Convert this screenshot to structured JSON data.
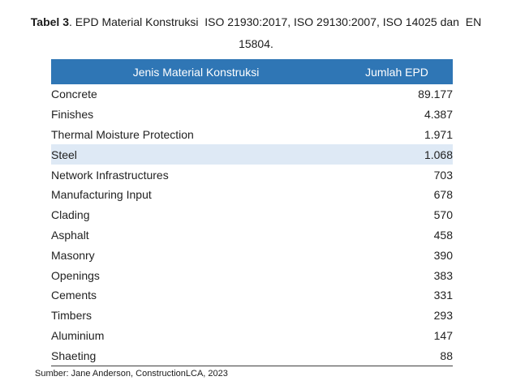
{
  "caption": {
    "label": "Tabel 3",
    "line1_rest": ". EPD Material Konstruksi  ISO 21930:2017, ISO 29130:2007, ISO 14025 dan  EN",
    "line2": "15804."
  },
  "table": {
    "headers": [
      "Jenis Material Konstruksi",
      "Jumlah EPD"
    ],
    "rows": [
      {
        "material": "Concrete",
        "epd": "89.177",
        "highlight": false
      },
      {
        "material": "Finishes",
        "epd": "4.387",
        "highlight": false
      },
      {
        "material": "Thermal Moisture Protection",
        "epd": "1.971",
        "highlight": false
      },
      {
        "material": "Steel",
        "epd": "1.068",
        "highlight": true
      },
      {
        "material": "Network Infrastructures",
        "epd": "703",
        "highlight": false
      },
      {
        "material": "Manufacturing Input",
        "epd": "678",
        "highlight": false
      },
      {
        "material": "Clading",
        "epd": "570",
        "highlight": false
      },
      {
        "material": "Asphalt",
        "epd": "458",
        "highlight": false
      },
      {
        "material": "Masonry",
        "epd": "390",
        "highlight": false
      },
      {
        "material": "Openings",
        "epd": "383",
        "highlight": false
      },
      {
        "material": "Cements",
        "epd": "331",
        "highlight": false
      },
      {
        "material": "Timbers",
        "epd": "293",
        "highlight": false
      },
      {
        "material": "Aluminium",
        "epd": "147",
        "highlight": false
      },
      {
        "material": "Shaeting",
        "epd": "88",
        "highlight": false
      }
    ]
  },
  "source": "Sumber: Jane Anderson, ConstructionLCA, 2023",
  "colors": {
    "header_bg": "#2F76B5",
    "header_text": "#FFFFFF",
    "highlight_row_bg": "#DEE9F5",
    "body_text": "#222222",
    "bottom_rule": "#3F3F3F"
  }
}
